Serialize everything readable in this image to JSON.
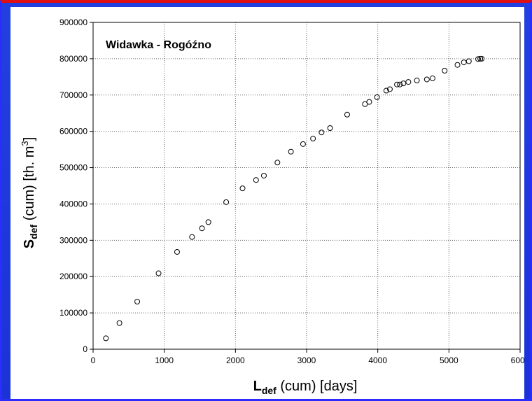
{
  "chart_data": {
    "type": "scatter",
    "title": "Widawka  - Rogóźno",
    "xlabel": {
      "main": "L",
      "sub": "def",
      "rest": " (cum) [days]"
    },
    "ylabel": {
      "main": "S",
      "sub": "def",
      "rest": " (cum) [th. m",
      "sup": "3",
      "end": "]"
    },
    "xlim": [
      0,
      6000
    ],
    "ylim": [
      0,
      900000
    ],
    "xticks": [
      "0",
      "1000",
      "2000",
      "3000",
      "4000",
      "5000",
      "6000"
    ],
    "yticks": [
      "0",
      "100000",
      "200000",
      "300000",
      "400000",
      "500000",
      "600000",
      "700000",
      "800000",
      "900000"
    ],
    "grid": true,
    "x": [
      180,
      370,
      620,
      920,
      1180,
      1390,
      1530,
      1620,
      1870,
      2100,
      2290,
      2400,
      2590,
      2780,
      2950,
      3090,
      3210,
      3330,
      3570,
      3820,
      3880,
      3990,
      4120,
      4170,
      4270,
      4310,
      4360,
      4430,
      4550,
      4690,
      4770,
      4940,
      5120,
      5210,
      5280,
      5410,
      5440,
      5460
    ],
    "y": [
      30000,
      72000,
      131000,
      209000,
      268000,
      309000,
      333000,
      350000,
      405000,
      443000,
      466000,
      478000,
      514000,
      544000,
      565000,
      580000,
      597000,
      609000,
      646000,
      675000,
      681000,
      694000,
      712000,
      716000,
      729000,
      729000,
      732000,
      736000,
      740000,
      743000,
      746000,
      767000,
      783000,
      790000,
      793000,
      799000,
      800000,
      800000
    ]
  }
}
